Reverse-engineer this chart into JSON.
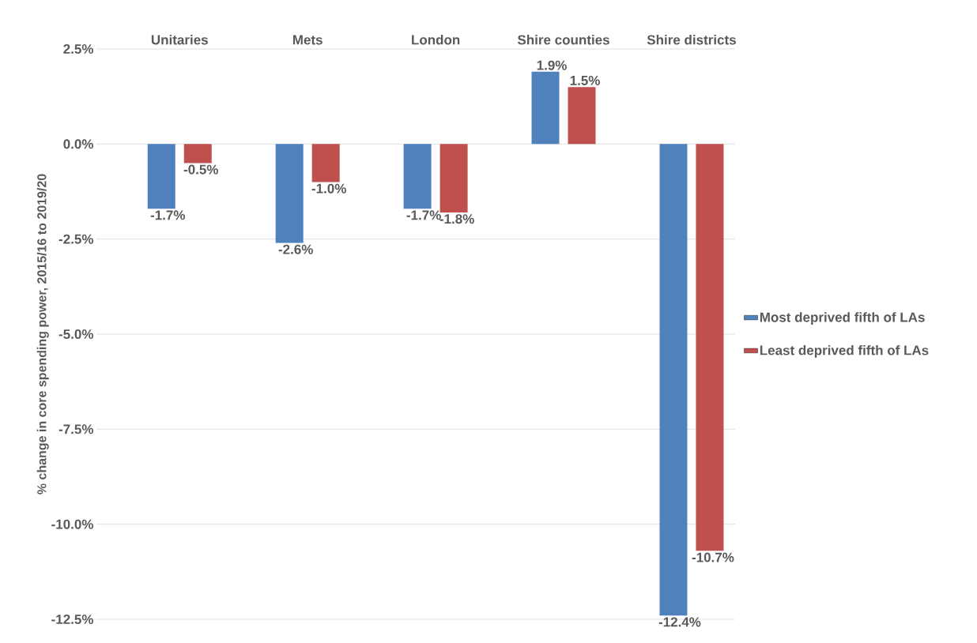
{
  "chart_data": {
    "type": "bar",
    "ylabel": "% change in core spending power, 2015/16 to 2019/20",
    "categories": [
      "Unitaries",
      "Mets",
      "London",
      "Shire counties",
      "Shire districts"
    ],
    "series": [
      {
        "name": "Most deprived fifth of LAs",
        "color": "#4f81bd",
        "values": [
          -1.7,
          -2.6,
          -1.7,
          1.9,
          -12.4
        ],
        "value_labels": [
          "-1.7%",
          "-2.6%",
          "-1.7%",
          "1.9%",
          "-12.4%"
        ]
      },
      {
        "name": "Least deprived fifth of LAs",
        "color": "#c0504d",
        "values": [
          -0.5,
          -1.0,
          -1.8,
          1.5,
          -10.7
        ],
        "value_labels": [
          "-0.5%",
          "-1.0%",
          "-1.8%",
          "1.5%",
          "-10.7%"
        ]
      }
    ],
    "ylim": [
      -12.5,
      2.5
    ],
    "yticks": [
      {
        "value": 2.5,
        "label": "2.5%"
      },
      {
        "value": 0,
        "label": "0.0%"
      },
      {
        "value": -2.5,
        "label": "-2.5%"
      },
      {
        "value": -5,
        "label": "-5.0%"
      },
      {
        "value": -7.5,
        "label": "-7.5%"
      },
      {
        "value": -10,
        "label": "-10.0%"
      },
      {
        "value": -12.5,
        "label": "-12.5%"
      }
    ],
    "grid": "y",
    "legend": "right"
  }
}
